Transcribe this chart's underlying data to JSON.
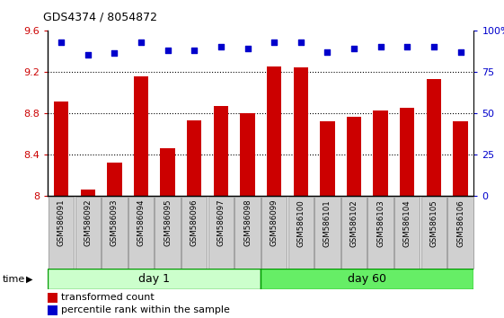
{
  "title": "GDS4374 / 8054872",
  "samples": [
    "GSM586091",
    "GSM586092",
    "GSM586093",
    "GSM586094",
    "GSM586095",
    "GSM586096",
    "GSM586097",
    "GSM586098",
    "GSM586099",
    "GSM586100",
    "GSM586101",
    "GSM586102",
    "GSM586103",
    "GSM586104",
    "GSM586105",
    "GSM586106"
  ],
  "bar_values": [
    8.91,
    8.06,
    8.32,
    9.15,
    8.46,
    8.73,
    8.87,
    8.8,
    9.25,
    9.24,
    8.72,
    8.76,
    8.82,
    8.85,
    9.13,
    8.72
  ],
  "percentile_values": [
    93,
    85,
    86,
    93,
    88,
    88,
    90,
    89,
    93,
    93,
    87,
    89,
    90,
    90,
    90,
    87
  ],
  "bar_color": "#cc0000",
  "dot_color": "#0000cc",
  "ylim_left": [
    8.0,
    9.6
  ],
  "ylim_right": [
    0,
    100
  ],
  "yticks_left": [
    8.0,
    8.4,
    8.8,
    9.2,
    9.6
  ],
  "ytick_labels_left": [
    "8",
    "8.4",
    "8.8",
    "9.2",
    "9.6"
  ],
  "yticks_right": [
    0,
    25,
    50,
    75,
    100
  ],
  "ytick_labels_right": [
    "0",
    "25",
    "50",
    "75",
    "100%"
  ],
  "day1_samples": 8,
  "day60_samples": 8,
  "day1_label": "day 1",
  "day60_label": "day 60",
  "day1_color": "#ccffcc",
  "day60_color": "#66ee66",
  "day1_border": "#009900",
  "day60_border": "#009900",
  "xlabel_area_color": "#d0d0d0",
  "grid_color": "#000000",
  "legend_items": [
    "transformed count",
    "percentile rank within the sample"
  ],
  "time_label": "time",
  "background_color": "#ffffff",
  "plot_bg_color": "#ffffff"
}
